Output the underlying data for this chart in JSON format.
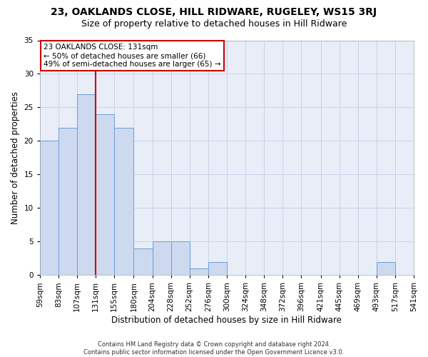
{
  "title": "23, OAKLANDS CLOSE, HILL RIDWARE, RUGELEY, WS15 3RJ",
  "subtitle": "Size of property relative to detached houses in Hill Ridware",
  "xlabel": "Distribution of detached houses by size in Hill Ridware",
  "ylabel": "Number of detached properties",
  "footer_line1": "Contains HM Land Registry data © Crown copyright and database right 2024.",
  "footer_line2": "Contains public sector information licensed under the Open Government Licence v3.0.",
  "bin_edges": [
    59,
    83,
    107,
    131,
    155,
    180,
    204,
    228,
    252,
    276,
    300,
    324,
    348,
    372,
    396,
    421,
    445,
    469,
    493,
    517,
    541
  ],
  "bin_counts": [
    20,
    22,
    27,
    24,
    22,
    4,
    5,
    5,
    1,
    2,
    0,
    0,
    0,
    0,
    0,
    0,
    0,
    0,
    2,
    0
  ],
  "bar_color": "#ccd9ef",
  "bar_edge_color": "#6a9fd8",
  "property_size": 131,
  "vline_color": "#cc0000",
  "annotation_line1": "23 OAKLANDS CLOSE: 131sqm",
  "annotation_line2": "← 50% of detached houses are smaller (66)",
  "annotation_line3": "49% of semi-detached houses are larger (65) →",
  "annotation_box_color": "#cc0000",
  "ylim": [
    0,
    35
  ],
  "yticks": [
    0,
    5,
    10,
    15,
    20,
    25,
    30,
    35
  ],
  "bg_color": "#ffffff",
  "plot_bg_color": "#e8edf8",
  "grid_color": "#c8d4e8",
  "title_fontsize": 10,
  "subtitle_fontsize": 9,
  "axis_label_fontsize": 8.5,
  "tick_fontsize": 7.5,
  "footer_fontsize": 6,
  "annotation_fontsize": 7.5
}
